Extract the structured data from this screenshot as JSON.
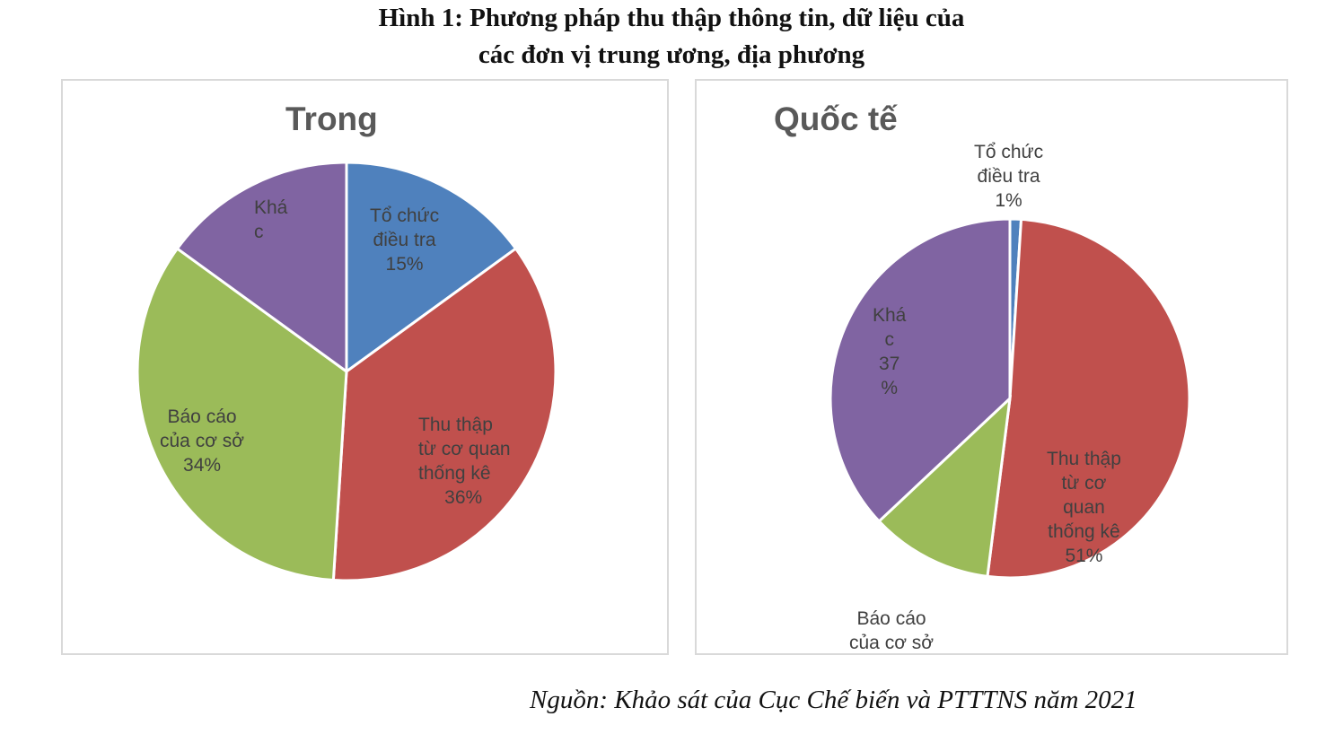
{
  "figure": {
    "title_line1": "Hình 1: Phương pháp thu thập thông tin, dữ liệu của",
    "title_line2": "các đơn vị trung ương, địa phương",
    "source": "Nguồn: Khảo sát của Cục Chế biến và PTTTNS năm 2021"
  },
  "colors": {
    "to_chuc": "#4f81bd",
    "thu_thap": "#c0504d",
    "bao_cao": "#9bbb59",
    "khac": "#8064a2"
  },
  "chart_data": [
    {
      "type": "pie",
      "title": "Trong",
      "categories": [
        "Tổ chức điều tra",
        "Thu thập từ cơ quan thống kê",
        "Báo cáo của cơ sở",
        "Khác"
      ],
      "values": [
        15,
        36,
        34,
        15
      ],
      "labels": {
        "to_chuc": "Tổ chức\nđiều tra\n15%",
        "thu_thap": "Thu thập\ntừ cơ quan\nthống kê\n     36%",
        "bao_cao": "Báo cáo\ncủa cơ sở\n34%",
        "khac": "Khá\nc"
      }
    },
    {
      "type": "pie",
      "title": "Quốc tế",
      "categories": [
        "Tổ chức điều tra",
        "Thu thập từ cơ quan thống kê",
        "Báo cáo của cơ sở",
        "Khác"
      ],
      "values": [
        1,
        51,
        11,
        37
      ],
      "labels": {
        "to_chuc": "Tổ chức\nđiều tra\n1%",
        "thu_thap": "Thu thập\ntừ cơ\nquan\nthống kê\n51%",
        "bao_cao": "Báo cáo\ncủa cơ sở",
        "khac": "Khá\nc\n37\n%"
      }
    }
  ]
}
